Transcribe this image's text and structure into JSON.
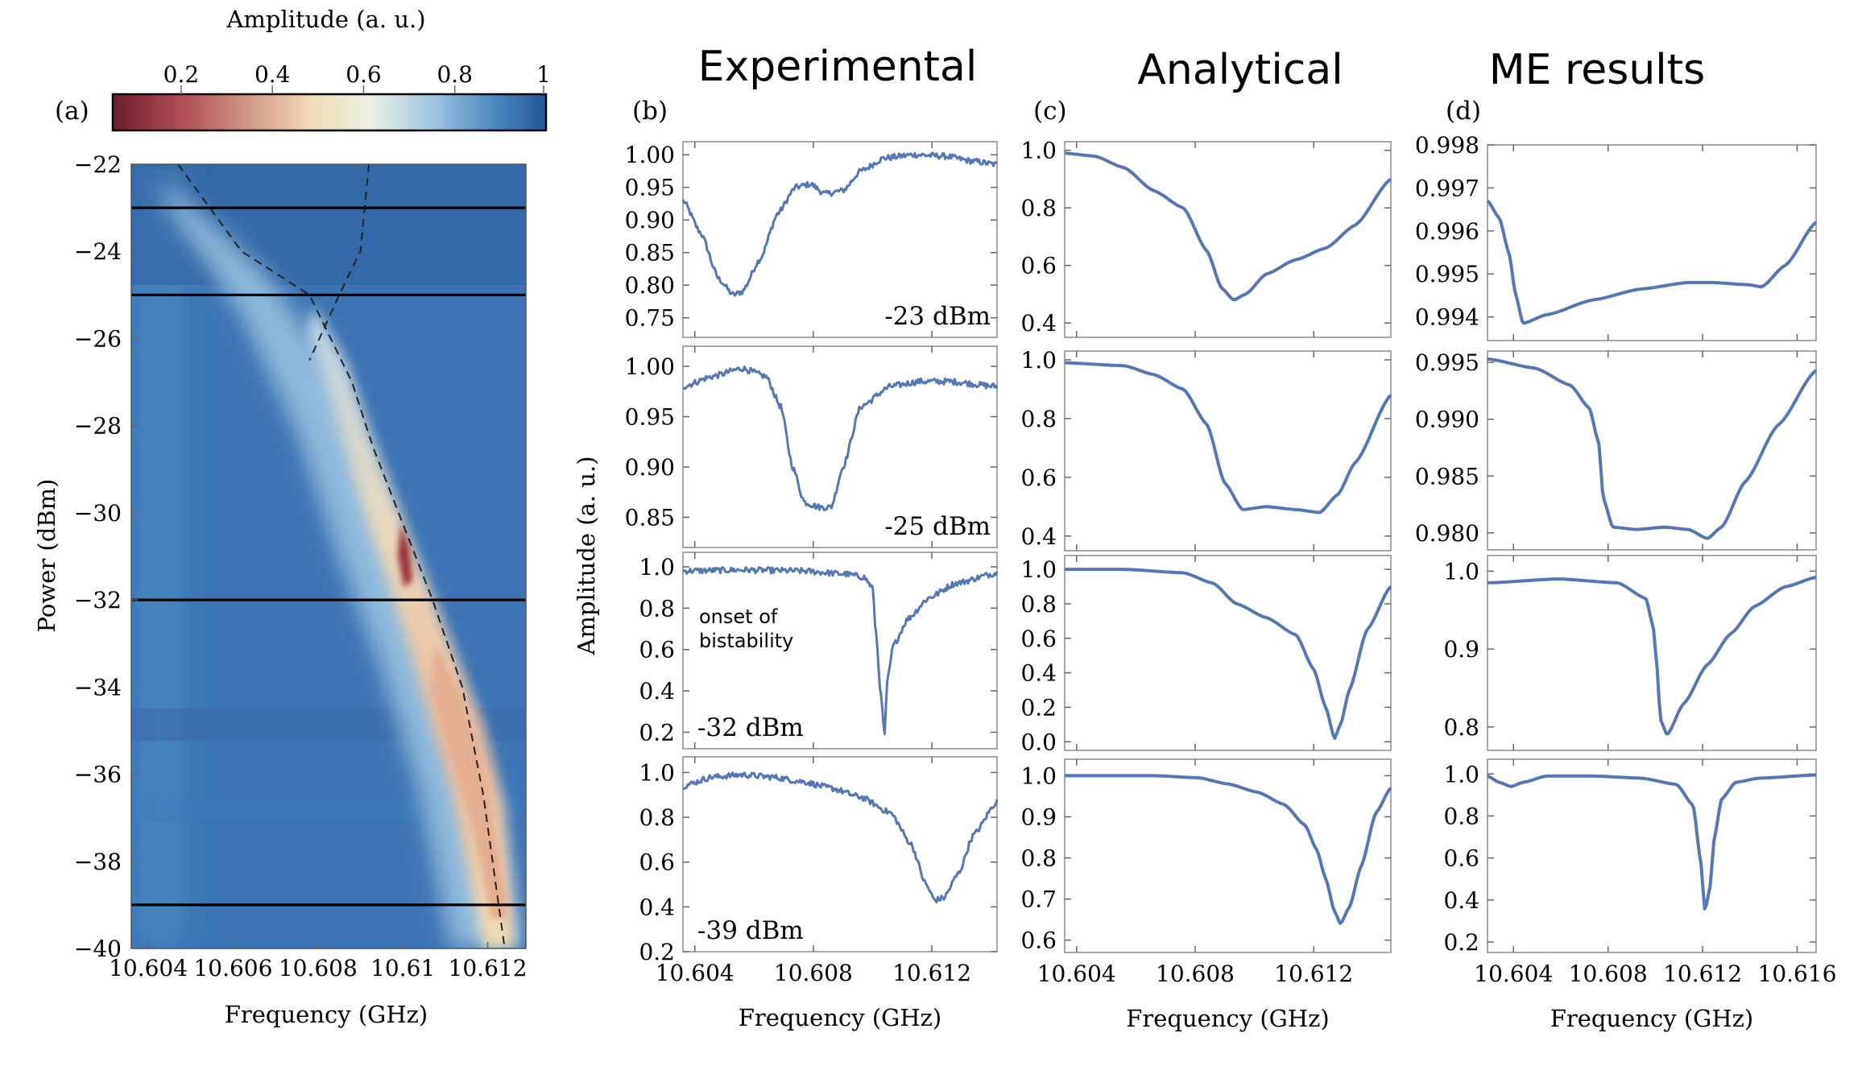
{
  "colors": {
    "series": "#5677b5",
    "colormap": [
      "#6f1c2a",
      "#b04e58",
      "#d49a8a",
      "#f0dcb8",
      "#e8efe3",
      "#9fc6e0",
      "#4f8ec6",
      "#215596"
    ]
  },
  "column_titles": {
    "experimental": "Experimental",
    "analytical": "Analytical",
    "me": "ME results"
  },
  "chart_data": [
    {
      "id": "a",
      "panel": "(a)",
      "type": "heatmap",
      "colorbar": {
        "label": "Amplitude (a. u.)",
        "ticks": [
          "0.2",
          "0.4",
          "0.6",
          "0.8",
          "1"
        ],
        "range": [
          0.05,
          1.0
        ]
      },
      "xlabel": "Frequency (GHz)",
      "ylabel": "Power (dBm)",
      "xlim": [
        10.6036,
        10.6129
      ],
      "ylim": [
        -40,
        -22
      ],
      "xticks": [
        "10.604",
        "10.606",
        "10.608",
        "10.61",
        "10.612"
      ],
      "yticks": [
        "−22",
        "−24",
        "−26",
        "−28",
        "−30",
        "−32",
        "−34",
        "−36",
        "−38",
        "−40"
      ],
      "cut_powers": [
        -23,
        -25,
        -32,
        -39
      ],
      "dashed_branch_1": {
        "f": [
          10.6047,
          10.6062,
          10.6078,
          10.6088,
          10.6093,
          10.6099,
          10.6107,
          10.6114,
          10.6119,
          10.6124
        ],
        "p": [
          -22,
          -24,
          -25,
          -27,
          -28.5,
          -30,
          -32,
          -34,
          -36.5,
          -40
        ]
      },
      "dashed_branch_2": {
        "f": [
          10.6092,
          10.609,
          10.6085,
          10.6078
        ],
        "p": [
          -22,
          -24,
          -25,
          -26.5
        ]
      }
    },
    {
      "id": "b1",
      "panel": "(b)",
      "type": "line",
      "noisy": true,
      "annotation": "-23 dBm",
      "xlim": [
        10.6036,
        10.6142
      ],
      "ylim": [
        0.72,
        1.02
      ],
      "yticks": [
        "1.00",
        "0.95",
        "0.90",
        "0.85",
        "0.80",
        "0.75"
      ],
      "x": [
        10.6036,
        10.6042,
        10.6048,
        10.6053,
        10.6056,
        10.6062,
        10.6068,
        10.6074,
        10.6079,
        10.6084,
        10.609,
        10.6096,
        10.6104,
        10.6114,
        10.6124,
        10.6134,
        10.6142
      ],
      "y": [
        0.93,
        0.88,
        0.81,
        0.785,
        0.79,
        0.84,
        0.91,
        0.95,
        0.955,
        0.94,
        0.945,
        0.975,
        0.995,
        1.0,
        0.998,
        0.99,
        0.985
      ]
    },
    {
      "id": "b2",
      "type": "line",
      "noisy": true,
      "annotation": "-25 dBm",
      "xlim": [
        10.6036,
        10.6142
      ],
      "ylim": [
        0.82,
        1.02
      ],
      "yticks": [
        "1.00",
        "0.95",
        "0.90",
        "0.85"
      ],
      "x": [
        10.6036,
        10.6046,
        10.6056,
        10.6064,
        10.6069,
        10.6073,
        10.6077,
        10.6082,
        10.6086,
        10.609,
        10.6096,
        10.6106,
        10.6116,
        10.6126,
        10.6142
      ],
      "y": [
        0.98,
        0.99,
        0.998,
        0.99,
        0.96,
        0.9,
        0.865,
        0.86,
        0.86,
        0.9,
        0.96,
        0.98,
        0.985,
        0.985,
        0.98
      ]
    },
    {
      "id": "b3",
      "type": "line",
      "noisy": true,
      "annotation": "-32 dBm",
      "note": "onset of\nbistability",
      "xlim": [
        10.6036,
        10.6142
      ],
      "ylim": [
        0.12,
        1.07
      ],
      "yticks": [
        "1.0",
        "0.8",
        "0.6",
        "0.4",
        "0.2"
      ],
      "x": [
        10.6036,
        10.6056,
        10.6076,
        10.6091,
        10.6097,
        10.61,
        10.6101,
        10.6103,
        10.6104,
        10.6105,
        10.6107,
        10.6112,
        10.6119,
        10.6128,
        10.6142
      ],
      "y": [
        0.98,
        0.985,
        0.98,
        0.965,
        0.95,
        0.9,
        0.7,
        0.35,
        0.18,
        0.45,
        0.62,
        0.75,
        0.85,
        0.92,
        0.97
      ]
    },
    {
      "id": "b4",
      "type": "line",
      "noisy": true,
      "annotation": "-39 dBm",
      "xlim": [
        10.6036,
        10.6142
      ],
      "ylim": [
        0.2,
        1.07
      ],
      "yticks": [
        "1.0",
        "0.8",
        "0.6",
        "0.4",
        "0.2"
      ],
      "xticks": [
        "10.604",
        "10.608",
        "10.612"
      ],
      "xlabel": "Frequency (GHz)",
      "x": [
        10.6036,
        10.6046,
        10.6056,
        10.6066,
        10.6076,
        10.6086,
        10.6096,
        10.6106,
        10.6113,
        10.6118,
        10.6121,
        10.6124,
        10.6129,
        10.6134,
        10.6142
      ],
      "y": [
        0.94,
        0.98,
        0.99,
        0.98,
        0.96,
        0.93,
        0.89,
        0.82,
        0.68,
        0.5,
        0.43,
        0.44,
        0.55,
        0.72,
        0.87
      ]
    },
    {
      "id": "c1",
      "panel": "(c)",
      "type": "line",
      "xlim": [
        10.6036,
        10.6146
      ],
      "ylim": [
        0.35,
        1.03
      ],
      "yticks": [
        "1.0",
        "0.8",
        "0.6",
        "0.4"
      ],
      "x": [
        10.6036,
        10.6046,
        10.6056,
        10.6066,
        10.6076,
        10.6084,
        10.6089,
        10.6093,
        10.6097,
        10.6104,
        10.6114,
        10.6124,
        10.6134,
        10.6146
      ],
      "y": [
        0.99,
        0.98,
        0.94,
        0.86,
        0.8,
        0.65,
        0.52,
        0.48,
        0.5,
        0.57,
        0.62,
        0.66,
        0.74,
        0.9
      ]
    },
    {
      "id": "c2",
      "type": "line",
      "xlim": [
        10.6036,
        10.6146
      ],
      "ylim": [
        0.35,
        1.03
      ],
      "yticks": [
        "1.0",
        "0.8",
        "0.6",
        "0.4"
      ],
      "x": [
        10.6036,
        10.6056,
        10.6066,
        10.6076,
        10.6084,
        10.609,
        10.6096,
        10.6104,
        10.6114,
        10.6122,
        10.6128,
        10.6134,
        10.6146
      ],
      "y": [
        0.99,
        0.98,
        0.95,
        0.9,
        0.78,
        0.58,
        0.49,
        0.5,
        0.49,
        0.48,
        0.54,
        0.65,
        0.88
      ]
    },
    {
      "id": "c3",
      "type": "line",
      "xlim": [
        10.6036,
        10.6146
      ],
      "ylim": [
        -0.05,
        1.08
      ],
      "yticks": [
        "1.0",
        "0.8",
        "0.6",
        "0.4",
        "0.2",
        "0.0"
      ],
      "x": [
        10.6036,
        10.6056,
        10.6076,
        10.6086,
        10.6094,
        10.6104,
        10.6114,
        10.612,
        10.6124,
        10.6127,
        10.6129,
        10.6132,
        10.6138,
        10.6146
      ],
      "y": [
        1.0,
        1.0,
        0.98,
        0.92,
        0.8,
        0.72,
        0.62,
        0.42,
        0.2,
        0.02,
        0.1,
        0.3,
        0.65,
        0.9
      ]
    },
    {
      "id": "c4",
      "type": "line",
      "xlim": [
        10.6036,
        10.6146
      ],
      "ylim": [
        0.57,
        1.04
      ],
      "yticks": [
        "1.0",
        "0.9",
        "0.8",
        "0.7",
        "0.6"
      ],
      "x": [
        10.6036,
        10.6066,
        10.6081,
        10.6091,
        10.6101,
        10.611,
        10.6117,
        10.6121,
        10.6124,
        10.6127,
        10.6129,
        10.6132,
        10.6136,
        10.6141,
        10.6146
      ],
      "y": [
        1.0,
        1.0,
        0.995,
        0.98,
        0.96,
        0.93,
        0.88,
        0.82,
        0.75,
        0.67,
        0.64,
        0.68,
        0.78,
        0.91,
        0.97
      ]
    },
    {
      "id": "d1",
      "panel": "(d)",
      "type": "line",
      "xlim": [
        10.6029,
        10.6168
      ],
      "ylim": [
        0.99345,
        0.998
      ],
      "yticks": [
        "0.998",
        "0.997",
        "0.996",
        "0.995",
        "0.994"
      ],
      "x": [
        10.6029,
        10.6034,
        10.6038,
        10.6041,
        10.6044,
        10.6054,
        10.6074,
        10.6094,
        10.6114,
        10.6124,
        10.6139,
        10.6145,
        10.6155,
        10.6168
      ],
      "y": [
        0.9967,
        0.9963,
        0.9955,
        0.9945,
        0.99385,
        0.99405,
        0.9944,
        0.99465,
        0.9948,
        0.9948,
        0.99475,
        0.9947,
        0.9952,
        0.9962
      ]
    },
    {
      "id": "d2",
      "type": "line",
      "xlim": [
        10.6029,
        10.6168
      ],
      "ylim": [
        0.9785,
        0.996
      ],
      "yticks": [
        "0.995",
        "0.990",
        "0.985",
        "0.980"
      ],
      "x": [
        10.6029,
        10.6049,
        10.6064,
        10.6072,
        10.6076,
        10.6078,
        10.6082,
        10.6092,
        10.6104,
        10.6114,
        10.6122,
        10.6128,
        10.6138,
        10.6152,
        10.6168
      ],
      "y": [
        0.9953,
        0.9945,
        0.993,
        0.991,
        0.988,
        0.983,
        0.9805,
        0.9803,
        0.9805,
        0.9803,
        0.9795,
        0.9805,
        0.9845,
        0.9895,
        0.9943
      ]
    },
    {
      "id": "d3",
      "type": "line",
      "xlim": [
        10.6029,
        10.6168
      ],
      "ylim": [
        0.77,
        1.02
      ],
      "yticks": [
        "1.0",
        "0.9",
        "0.8"
      ],
      "x": [
        10.6029,
        10.6059,
        10.6084,
        10.6096,
        10.6099,
        10.6101,
        10.6102,
        10.6105,
        10.6112,
        10.6122,
        10.6132,
        10.6142,
        10.6155,
        10.6168
      ],
      "y": [
        0.985,
        0.99,
        0.985,
        0.965,
        0.93,
        0.87,
        0.81,
        0.79,
        0.83,
        0.88,
        0.92,
        0.955,
        0.98,
        0.992
      ]
    },
    {
      "id": "d4",
      "type": "line",
      "xlim": [
        10.6029,
        10.6168
      ],
      "ylim": [
        0.15,
        1.07
      ],
      "yticks": [
        "1.0",
        "0.8",
        "0.6",
        "0.4",
        "0.2"
      ],
      "xticks": [
        "10.604",
        "10.608",
        "10.612",
        "10.616"
      ],
      "xlabel": "Frequency (GHz)",
      "x": [
        10.6029,
        10.6034,
        10.6039,
        10.6044,
        10.6054,
        10.6074,
        10.6094,
        10.6109,
        10.6116,
        10.6119,
        10.6121,
        10.6123,
        10.6125,
        10.6128,
        10.6134,
        10.6144,
        10.6168
      ],
      "y": [
        0.99,
        0.96,
        0.94,
        0.96,
        0.99,
        0.99,
        0.98,
        0.95,
        0.85,
        0.6,
        0.35,
        0.45,
        0.7,
        0.88,
        0.96,
        0.98,
        0.995
      ]
    }
  ],
  "shared_ylabel": "Amplitude (a. u.)"
}
